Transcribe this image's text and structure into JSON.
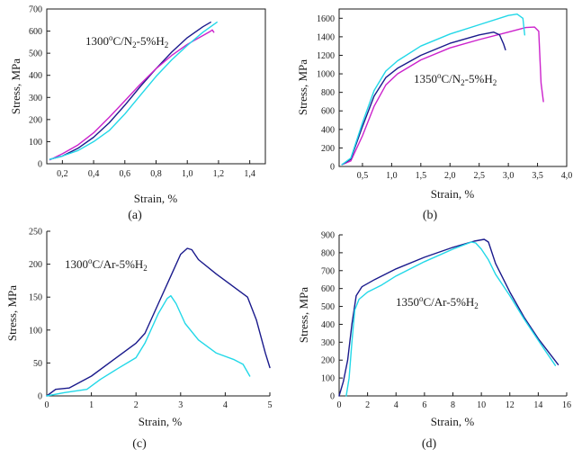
{
  "chart_data": [
    {
      "id": "a",
      "type": "line",
      "panel_label": "(a)",
      "annotation": {
        "base": "1300",
        "sup": "o",
        "mid": "C/N",
        "sub1": "2",
        "rest": "-5%H",
        "sub2": "2"
      },
      "xlabel": "Strain, %",
      "ylabel": "Stress, MPa",
      "xlim": [
        0.1,
        1.5
      ],
      "ylim": [
        0,
        700
      ],
      "xticks": [
        0.2,
        0.4,
        0.6,
        0.8,
        1.0,
        1.2,
        1.4
      ],
      "xtick_labels": [
        "0,2",
        "0,4",
        "0,6",
        "0,8",
        "1,0",
        "1,2",
        "1,4"
      ],
      "yticks": [
        0,
        100,
        200,
        300,
        400,
        500,
        600,
        700
      ],
      "ytick_labels": [
        "0",
        "100",
        "200",
        "300",
        "400",
        "500",
        "600",
        "700"
      ],
      "series": [
        {
          "name": "specimen-navy",
          "color": "#1a1a8c",
          "x": [
            0.12,
            0.2,
            0.3,
            0.4,
            0.5,
            0.6,
            0.7,
            0.8,
            0.9,
            1.0,
            1.1,
            1.15
          ],
          "y": [
            20,
            35,
            70,
            120,
            185,
            265,
            350,
            430,
            505,
            570,
            620,
            640
          ]
        },
        {
          "name": "specimen-magenta",
          "color": "#cc22cc",
          "x": [
            0.12,
            0.2,
            0.3,
            0.4,
            0.5,
            0.6,
            0.7,
            0.8,
            0.9,
            1.0,
            1.1,
            1.15,
            1.16,
            1.17
          ],
          "y": [
            18,
            45,
            85,
            140,
            210,
            285,
            360,
            430,
            490,
            540,
            580,
            600,
            605,
            595
          ]
        },
        {
          "name": "specimen-cyan",
          "color": "#22d8e8",
          "x": [
            0.12,
            0.2,
            0.3,
            0.4,
            0.5,
            0.6,
            0.7,
            0.8,
            0.9,
            1.0,
            1.1,
            1.19
          ],
          "y": [
            20,
            35,
            60,
            100,
            150,
            225,
            310,
            395,
            470,
            535,
            595,
            640
          ]
        }
      ]
    },
    {
      "id": "b",
      "type": "line",
      "panel_label": "(b)",
      "annotation": {
        "base": "1350",
        "sup": "o",
        "mid": "C/N",
        "sub1": "2",
        "rest": "-5%H",
        "sub2": "2"
      },
      "xlabel": "Strain, %",
      "ylabel": "Stress, MPa",
      "xlim": [
        0.1,
        4.0
      ],
      "ylim": [
        0,
        1700
      ],
      "xticks": [
        0.5,
        1.0,
        1.5,
        2.0,
        2.5,
        3.0,
        3.5,
        4.0
      ],
      "xtick_labels": [
        "0,5",
        "1,0",
        "1,5",
        "2,0",
        "2,5",
        "3,0",
        "3,5",
        "4,0"
      ],
      "yticks": [
        0,
        200,
        400,
        600,
        800,
        1000,
        1200,
        1400,
        1600
      ],
      "ytick_labels": [
        "0",
        "200",
        "400",
        "600",
        "800",
        "1000",
        "1200",
        "1400",
        "1600"
      ],
      "series": [
        {
          "name": "specimen-magenta",
          "color": "#cc22cc",
          "x": [
            0.15,
            0.3,
            0.5,
            0.7,
            0.9,
            1.1,
            1.5,
            2.0,
            2.5,
            3.0,
            3.3,
            3.45,
            3.52,
            3.56,
            3.6
          ],
          "y": [
            20,
            60,
            330,
            650,
            880,
            1000,
            1150,
            1280,
            1370,
            1450,
            1500,
            1505,
            1460,
            900,
            700
          ]
        },
        {
          "name": "specimen-navy",
          "color": "#1a1a8c",
          "x": [
            0.15,
            0.3,
            0.5,
            0.7,
            0.9,
            1.1,
            1.5,
            2.0,
            2.5,
            2.75,
            2.85,
            2.92,
            2.95
          ],
          "y": [
            20,
            80,
            430,
            760,
            960,
            1060,
            1200,
            1330,
            1420,
            1450,
            1420,
            1320,
            1260
          ]
        },
        {
          "name": "specimen-cyan",
          "color": "#22d8e8",
          "x": [
            0.15,
            0.3,
            0.5,
            0.7,
            0.9,
            1.1,
            1.5,
            2.0,
            2.5,
            3.0,
            3.15,
            3.25,
            3.28
          ],
          "y": [
            20,
            90,
            470,
            820,
            1030,
            1140,
            1300,
            1430,
            1530,
            1630,
            1645,
            1600,
            1420
          ]
        }
      ]
    },
    {
      "id": "c",
      "type": "line",
      "panel_label": "(c)",
      "annotation": {
        "base": "1300",
        "sup": "o",
        "mid": "C/Ar-5%H",
        "sub1": "2",
        "rest": "",
        "sub2": ""
      },
      "xlabel": "Strain, %",
      "ylabel": "Stress, MPa",
      "xlim": [
        0,
        5
      ],
      "ylim": [
        0,
        250
      ],
      "xticks": [
        0,
        1,
        2,
        3,
        4,
        5
      ],
      "xtick_labels": [
        "0",
        "1",
        "2",
        "3",
        "4",
        "5"
      ],
      "yticks": [
        0,
        50,
        100,
        150,
        200,
        250
      ],
      "ytick_labels": [
        "0",
        "50",
        "100",
        "150",
        "200",
        "250"
      ],
      "series": [
        {
          "name": "specimen-navy",
          "color": "#1a1a8c",
          "x": [
            0,
            0.2,
            0.5,
            1.0,
            1.5,
            2.0,
            2.2,
            2.5,
            2.8,
            3.0,
            3.15,
            3.25,
            3.4,
            3.8,
            4.2,
            4.5,
            4.7,
            4.9,
            5.0
          ],
          "y": [
            0,
            10,
            12,
            30,
            55,
            80,
            95,
            140,
            185,
            215,
            224,
            222,
            207,
            185,
            165,
            150,
            115,
            65,
            43
          ]
        },
        {
          "name": "specimen-cyan",
          "color": "#22d8e8",
          "x": [
            0,
            0.4,
            0.9,
            1.2,
            1.6,
            2.0,
            2.2,
            2.5,
            2.7,
            2.78,
            2.9,
            3.1,
            3.4,
            3.8,
            4.2,
            4.4,
            4.55
          ],
          "y": [
            0,
            5,
            10,
            25,
            42,
            58,
            80,
            125,
            148,
            152,
            140,
            110,
            85,
            65,
            55,
            48,
            30
          ]
        }
      ]
    },
    {
      "id": "d",
      "type": "line",
      "panel_label": "(d)",
      "annotation": {
        "base": "1350",
        "sup": "o",
        "mid": "C/Ar-5%H",
        "sub1": "2",
        "rest": "",
        "sub2": ""
      },
      "xlabel": "Strain, %",
      "ylabel": "Stress, MPa",
      "xlim": [
        0,
        16
      ],
      "ylim": [
        0,
        900
      ],
      "xticks": [
        0,
        2,
        4,
        6,
        8,
        10,
        12,
        14,
        16
      ],
      "xtick_labels": [
        "0",
        "2",
        "4",
        "6",
        "8",
        "10",
        "12",
        "14",
        "16"
      ],
      "yticks": [
        0,
        100,
        200,
        300,
        400,
        500,
        600,
        700,
        800,
        900
      ],
      "ytick_labels": [
        "0",
        "100",
        "200",
        "300",
        "400",
        "500",
        "600",
        "700",
        "800",
        "900"
      ],
      "series": [
        {
          "name": "specimen-navy",
          "color": "#1a1a8c",
          "x": [
            0,
            0.3,
            0.6,
            0.9,
            1.2,
            1.6,
            2.5,
            4,
            6,
            8,
            9.5,
            10.2,
            10.5,
            11,
            12,
            13,
            14,
            15.4
          ],
          "y": [
            0,
            80,
            200,
            400,
            560,
            610,
            650,
            710,
            775,
            830,
            865,
            875,
            860,
            740,
            580,
            440,
            320,
            175
          ]
        },
        {
          "name": "specimen-cyan",
          "color": "#22d8e8",
          "x": [
            0.5,
            0.7,
            0.9,
            1.1,
            1.4,
            2,
            3,
            4,
            6,
            8,
            9.3,
            9.6,
            10,
            10.5,
            11,
            12,
            13,
            14,
            15.2
          ],
          "y": [
            0,
            100,
            300,
            480,
            540,
            580,
            620,
            670,
            750,
            820,
            860,
            855,
            820,
            760,
            680,
            560,
            430,
            310,
            170
          ]
        }
      ]
    }
  ]
}
